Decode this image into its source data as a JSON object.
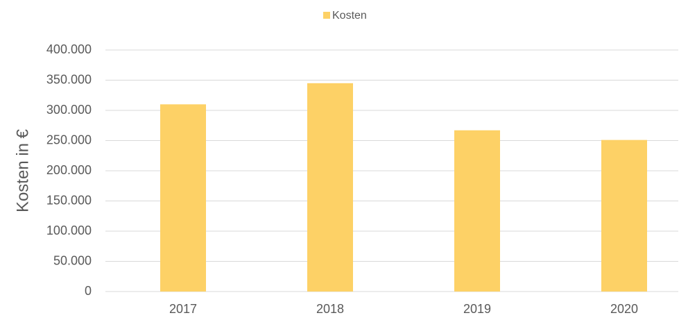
{
  "chart_data": {
    "type": "bar",
    "y_label": "Kosten in €",
    "categories": [
      "2017",
      "2018",
      "2019",
      "2020"
    ],
    "series": [
      {
        "name": "Kosten",
        "color": "#fdd166",
        "values": [
          310000,
          345000,
          267000,
          251000
        ]
      }
    ],
    "ylim": [
      0,
      400000
    ],
    "yticks": [
      0,
      {
        "value": 50000,
        "label": "50.000"
      },
      {
        "value": 100000,
        "label": "100.000"
      },
      {
        "value": 150000,
        "label": "150.000"
      },
      {
        "value": 200000,
        "label": "200.000"
      },
      {
        "value": 250000,
        "label": "250.000"
      },
      {
        "value": 300000,
        "label": "300.000"
      },
      {
        "value": 350000,
        "label": "350.000"
      },
      {
        "value": 400000,
        "label": "400.000"
      }
    ],
    "grid": true,
    "legend": "top"
  }
}
